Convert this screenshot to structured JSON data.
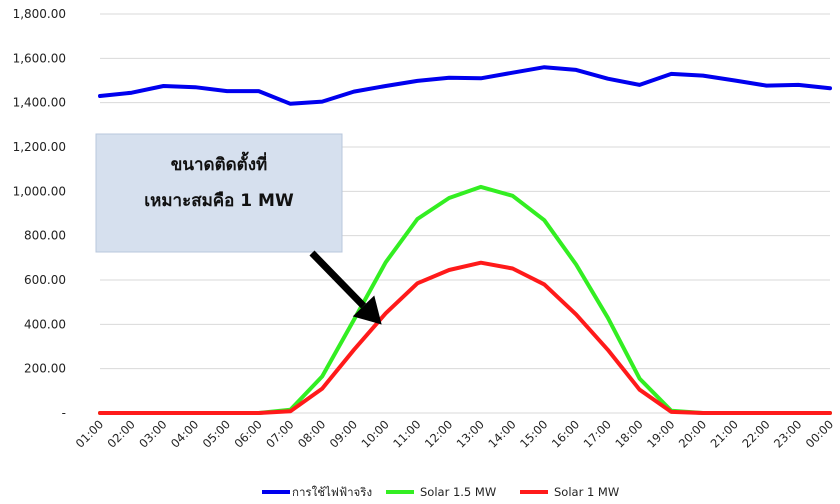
{
  "chart_data": {
    "type": "line",
    "title": "",
    "xlabel": "",
    "ylabel": "",
    "ylim": [
      0,
      1800
    ],
    "y_ticks": [
      {
        "value": 1800,
        "label": "1,800.00"
      },
      {
        "value": 1600,
        "label": "1,600.00"
      },
      {
        "value": 1400,
        "label": "1,400.00"
      },
      {
        "value": 1200,
        "label": "1,200.00"
      },
      {
        "value": 1000,
        "label": "1,000.00"
      },
      {
        "value": 800,
        "label": "800.00"
      },
      {
        "value": 600,
        "label": "600.00"
      },
      {
        "value": 400,
        "label": "400.00"
      },
      {
        "value": 200,
        "label": "200.00"
      },
      {
        "value": 0,
        "label": "-"
      }
    ],
    "grid": true,
    "legend": "bottom",
    "categories": [
      "01:00",
      "02:00",
      "03:00",
      "04:00",
      "05:00",
      "06:00",
      "07:00",
      "08:00",
      "09:00",
      "10:00",
      "11:00",
      "12:00",
      "13:00",
      "14:00",
      "15:00",
      "16:00",
      "17:00",
      "18:00",
      "19:00",
      "20:00",
      "21:00",
      "22:00",
      "23:00",
      "00:00"
    ],
    "series": [
      {
        "name": "การใช้ไฟฟ้าจริง",
        "color": "#0000ee",
        "values": [
          1430,
          1445,
          1475,
          1470,
          1452,
          1452,
          1395,
          1405,
          1450,
          1475,
          1498,
          1512,
          1510,
          1535,
          1560,
          1548,
          1508,
          1480,
          1530,
          1522,
          1500,
          1477,
          1480,
          1465
        ]
      },
      {
        "name": "Solar 1.5 MW",
        "color": "#33ee22",
        "values": [
          0,
          0,
          0,
          0,
          0,
          0,
          15,
          165,
          420,
          680,
          875,
          970,
          1020,
          980,
          870,
          670,
          430,
          155,
          10,
          0,
          0,
          0,
          0,
          0
        ]
      },
      {
        "name": "Solar 1 MW",
        "color": "#ff1a1a",
        "values": [
          0,
          0,
          0,
          0,
          0,
          0,
          8,
          110,
          285,
          450,
          585,
          645,
          678,
          652,
          580,
          445,
          285,
          105,
          5,
          0,
          0,
          0,
          0,
          0
        ]
      }
    ],
    "annotations": [
      {
        "text_lines": [
          "ขนาดติดตั้งที่",
          "เหมาะสมคือ 1 MW"
        ],
        "points_to": {
          "x": "10:00",
          "y": 390
        }
      }
    ]
  }
}
